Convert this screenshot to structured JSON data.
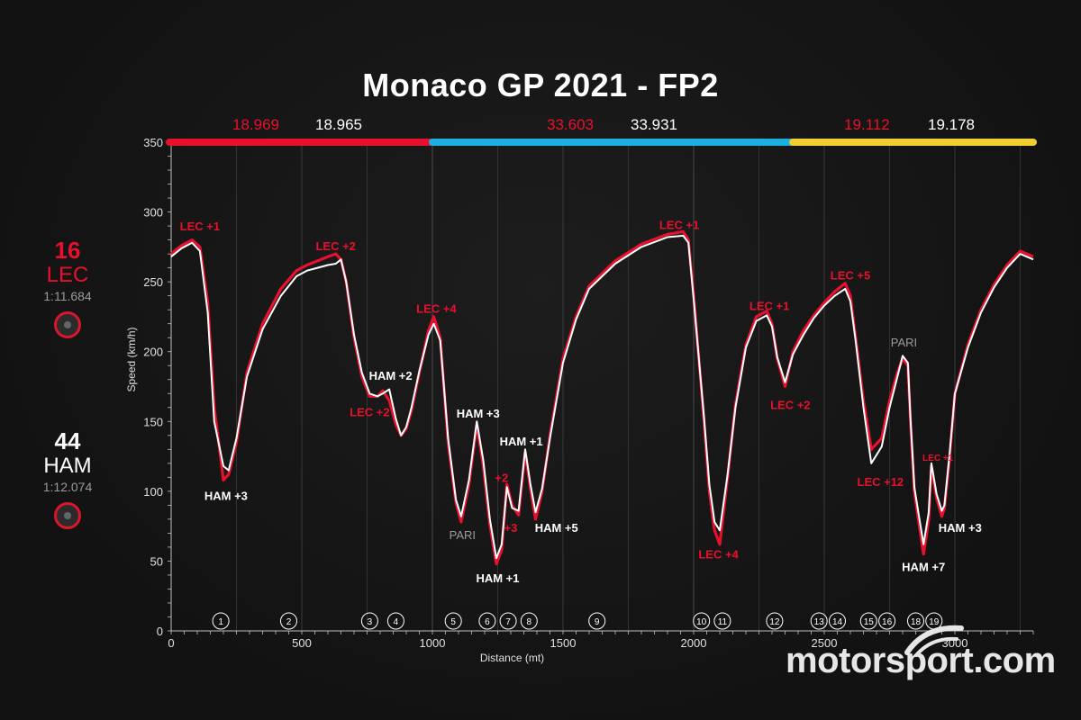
{
  "colors": {
    "lec": "#e8112d",
    "ham": "#ffffff",
    "sector1": "#e8112d",
    "sector2": "#1bb0e0",
    "sector3": "#f2cf2d",
    "grid": "#3a3a3a",
    "axis": "#bfbfbf"
  },
  "header": {
    "title": "Monaco GP 2021 - FP2"
  },
  "sectors": [
    {
      "lec": "18.969",
      "ham": "18.965"
    },
    {
      "lec": "33.603",
      "ham": "33.931"
    },
    {
      "lec": "19.112",
      "ham": "19.178"
    }
  ],
  "drivers": {
    "lec": {
      "number": "16",
      "code": "LEC",
      "laptime": "1:11.684"
    },
    "ham": {
      "number": "44",
      "code": "HAM",
      "laptime": "1:12.074"
    }
  },
  "watermark": "motorsport.com",
  "chart_data": {
    "type": "line",
    "title": "Monaco GP 2021 - FP2",
    "xlabel": "Distance (mt)",
    "ylabel": "Speed (km/h)",
    "xlim": [
      0,
      3300
    ],
    "ylim": [
      0,
      350
    ],
    "xticks": [
      0,
      500,
      1000,
      1500,
      2000,
      2500,
      3000
    ],
    "yticks": [
      0,
      50,
      100,
      150,
      200,
      250,
      300,
      350
    ],
    "sector_bounds": [
      0,
      1000,
      2380,
      3300
    ],
    "series": [
      {
        "name": "LEC",
        "x": [
          0,
          40,
          80,
          110,
          140,
          165,
          200,
          220,
          250,
          290,
          350,
          420,
          480,
          520,
          560,
          600,
          630,
          650,
          670,
          700,
          730,
          760,
          790,
          810,
          835,
          860,
          880,
          900,
          920,
          950,
          985,
          1005,
          1030,
          1060,
          1090,
          1110,
          1140,
          1170,
          1195,
          1220,
          1245,
          1265,
          1285,
          1305,
          1330,
          1355,
          1375,
          1395,
          1420,
          1450,
          1500,
          1550,
          1600,
          1700,
          1800,
          1900,
          1960,
          1980,
          2000,
          2040,
          2060,
          2080,
          2100,
          2130,
          2160,
          2200,
          2240,
          2280,
          2300,
          2320,
          2350,
          2380,
          2420,
          2460,
          2500,
          2540,
          2580,
          2600,
          2620,
          2650,
          2680,
          2720,
          2750,
          2780,
          2800,
          2820,
          2830,
          2845,
          2860,
          2880,
          2900,
          2910,
          2930,
          2950,
          2960,
          2980,
          3000,
          3050,
          3100,
          3150,
          3200,
          3250,
          3300
        ],
        "y": [
          270,
          276,
          280,
          275,
          235,
          160,
          108,
          112,
          135,
          185,
          220,
          245,
          258,
          262,
          265,
          268,
          270,
          266,
          250,
          210,
          182,
          168,
          168,
          172,
          165,
          148,
          140,
          145,
          158,
          185,
          215,
          225,
          210,
          135,
          92,
          78,
          105,
          148,
          118,
          76,
          48,
          58,
          105,
          90,
          83,
          128,
          102,
          80,
          100,
          140,
          195,
          225,
          247,
          265,
          277,
          284,
          286,
          280,
          240,
          150,
          100,
          72,
          62,
          110,
          162,
          205,
          225,
          229,
          220,
          195,
          175,
          200,
          215,
          226,
          235,
          243,
          249,
          240,
          210,
          165,
          130,
          138,
          165,
          185,
          195,
          190,
          150,
          100,
          80,
          55,
          80,
          118,
          95,
          82,
          88,
          125,
          170,
          205,
          230,
          248,
          262,
          272,
          268
        ]
      },
      {
        "name": "HAM",
        "x": [
          0,
          40,
          80,
          110,
          140,
          165,
          200,
          220,
          250,
          290,
          350,
          420,
          480,
          520,
          560,
          600,
          630,
          650,
          670,
          700,
          730,
          760,
          790,
          810,
          835,
          860,
          880,
          900,
          920,
          950,
          985,
          1005,
          1030,
          1060,
          1090,
          1110,
          1140,
          1170,
          1195,
          1220,
          1245,
          1265,
          1285,
          1305,
          1330,
          1355,
          1375,
          1395,
          1420,
          1450,
          1500,
          1550,
          1600,
          1700,
          1800,
          1900,
          1960,
          1980,
          2000,
          2040,
          2060,
          2080,
          2100,
          2130,
          2160,
          2200,
          2240,
          2280,
          2300,
          2320,
          2350,
          2380,
          2420,
          2460,
          2500,
          2540,
          2580,
          2600,
          2620,
          2650,
          2680,
          2720,
          2750,
          2780,
          2800,
          2820,
          2830,
          2845,
          2860,
          2880,
          2900,
          2910,
          2930,
          2950,
          2960,
          2980,
          3000,
          3050,
          3100,
          3150,
          3200,
          3250,
          3300
        ],
        "y": [
          268,
          274,
          278,
          272,
          228,
          150,
          118,
          115,
          138,
          182,
          216,
          240,
          254,
          258,
          260,
          262,
          263,
          266,
          250,
          212,
          185,
          170,
          168,
          170,
          173,
          152,
          140,
          146,
          160,
          186,
          212,
          220,
          208,
          138,
          94,
          82,
          108,
          150,
          122,
          80,
          52,
          62,
          103,
          88,
          86,
          130,
          105,
          85,
          102,
          138,
          192,
          223,
          245,
          263,
          275,
          282,
          283,
          278,
          238,
          152,
          105,
          78,
          72,
          112,
          160,
          203,
          222,
          226,
          218,
          196,
          178,
          198,
          212,
          224,
          233,
          240,
          245,
          236,
          208,
          160,
          120,
          132,
          160,
          182,
          197,
          192,
          152,
          103,
          85,
          62,
          85,
          120,
          98,
          86,
          90,
          127,
          170,
          203,
          228,
          246,
          260,
          270,
          266
        ]
      }
    ],
    "annotations": [
      {
        "text": "LEC +1",
        "x": 110,
        "y": 290,
        "color": "red"
      },
      {
        "text": "HAM +3",
        "x": 210,
        "y": 97,
        "color": "white"
      },
      {
        "text": "LEC +2",
        "x": 630,
        "y": 276,
        "color": "red"
      },
      {
        "text": "HAM +2",
        "x": 840,
        "y": 183,
        "color": "white"
      },
      {
        "text": "LEC +2",
        "x": 760,
        "y": 157,
        "color": "red"
      },
      {
        "text": "LEC +4",
        "x": 1015,
        "y": 231,
        "color": "red"
      },
      {
        "text": "HAM +3",
        "x": 1175,
        "y": 156,
        "color": "white"
      },
      {
        "text": "PARI",
        "x": 1115,
        "y": 69,
        "color": "grey"
      },
      {
        "text": "+2",
        "x": 1265,
        "y": 110,
        "color": "red"
      },
      {
        "text": "+3",
        "x": 1300,
        "y": 74,
        "color": "red"
      },
      {
        "text": "HAM +1",
        "x": 1250,
        "y": 38,
        "color": "white"
      },
      {
        "text": "HAM +1",
        "x": 1340,
        "y": 136,
        "color": "white"
      },
      {
        "text": "HAM +5",
        "x": 1475,
        "y": 74,
        "color": "white"
      },
      {
        "text": "LEC +1",
        "x": 1945,
        "y": 291,
        "color": "red"
      },
      {
        "text": "LEC +4",
        "x": 2095,
        "y": 55,
        "color": "red"
      },
      {
        "text": "LEC +1",
        "x": 2290,
        "y": 233,
        "color": "red"
      },
      {
        "text": "LEC +2",
        "x": 2370,
        "y": 162,
        "color": "red"
      },
      {
        "text": "LEC +5",
        "x": 2600,
        "y": 255,
        "color": "red"
      },
      {
        "text": "PARI",
        "x": 2805,
        "y": 207,
        "color": "grey"
      },
      {
        "text": "LEC +12",
        "x": 2715,
        "y": 107,
        "color": "red"
      },
      {
        "text": "LEC +1",
        "x": 2935,
        "y": 125,
        "color": "red"
      },
      {
        "text": "HAM +3",
        "x": 3020,
        "y": 74,
        "color": "white"
      },
      {
        "text": "HAM +7",
        "x": 2880,
        "y": 46,
        "color": "white"
      }
    ],
    "corners": [
      {
        "label": "1",
        "x": 190
      },
      {
        "label": "2",
        "x": 450
      },
      {
        "label": "3",
        "x": 760
      },
      {
        "label": "4",
        "x": 860
      },
      {
        "label": "5",
        "x": 1080
      },
      {
        "label": "6",
        "x": 1210
      },
      {
        "label": "7",
        "x": 1290
      },
      {
        "label": "8",
        "x": 1370
      },
      {
        "label": "9",
        "x": 1630
      },
      {
        "label": "10",
        "x": 2030
      },
      {
        "label": "11",
        "x": 2110
      },
      {
        "label": "12",
        "x": 2310
      },
      {
        "label": "13",
        "x": 2480
      },
      {
        "label": "14",
        "x": 2550
      },
      {
        "label": "15",
        "x": 2670
      },
      {
        "label": "16",
        "x": 2740
      },
      {
        "label": "18",
        "x": 2850
      },
      {
        "label": "19",
        "x": 2920
      }
    ]
  }
}
